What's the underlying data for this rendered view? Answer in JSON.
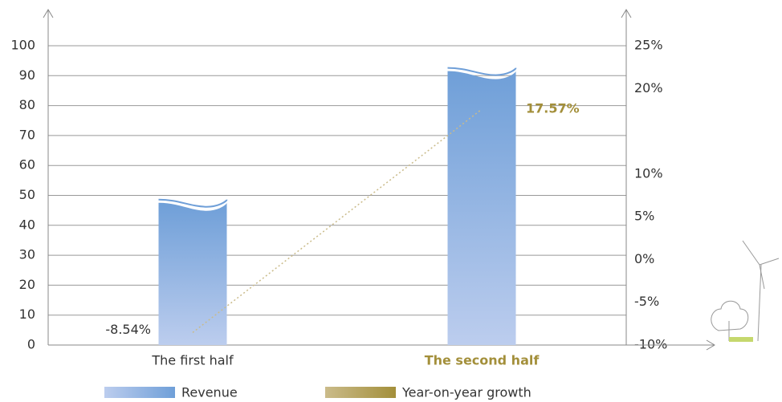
{
  "chart_data": {
    "type": "bar",
    "categories": [
      "The first half",
      "The second half"
    ],
    "highlight_category_color": "#a38f3a",
    "series": [
      {
        "name": "Revenue",
        "color": "#6f9fd8",
        "color_light": "#bccdee",
        "values": [
          47,
          91
        ]
      },
      {
        "name": "Year-on-year growth",
        "color": "#a38f3a",
        "color_light": "#cabb8a",
        "type": "line",
        "axis": "y2",
        "values": [
          -8.54,
          17.57
        ],
        "value_labels": [
          "-8.54%",
          "17.57%"
        ]
      }
    ],
    "ylim": [
      0,
      100
    ],
    "yticks": [
      0,
      10,
      20,
      30,
      40,
      50,
      60,
      70,
      80,
      90,
      100
    ],
    "y2lim": [
      -10,
      25
    ],
    "y2ticks": [
      {
        "value": -10,
        "label": "-10%"
      },
      {
        "value": -5,
        "label": "-5%"
      },
      {
        "value": 0,
        "label": "0%"
      },
      {
        "value": 5,
        "label": "5%"
      },
      {
        "value": 10,
        "label": "10%"
      },
      {
        "value": 20,
        "label": "20%"
      },
      {
        "value": 25,
        "label": "25%"
      }
    ],
    "grid": true
  }
}
